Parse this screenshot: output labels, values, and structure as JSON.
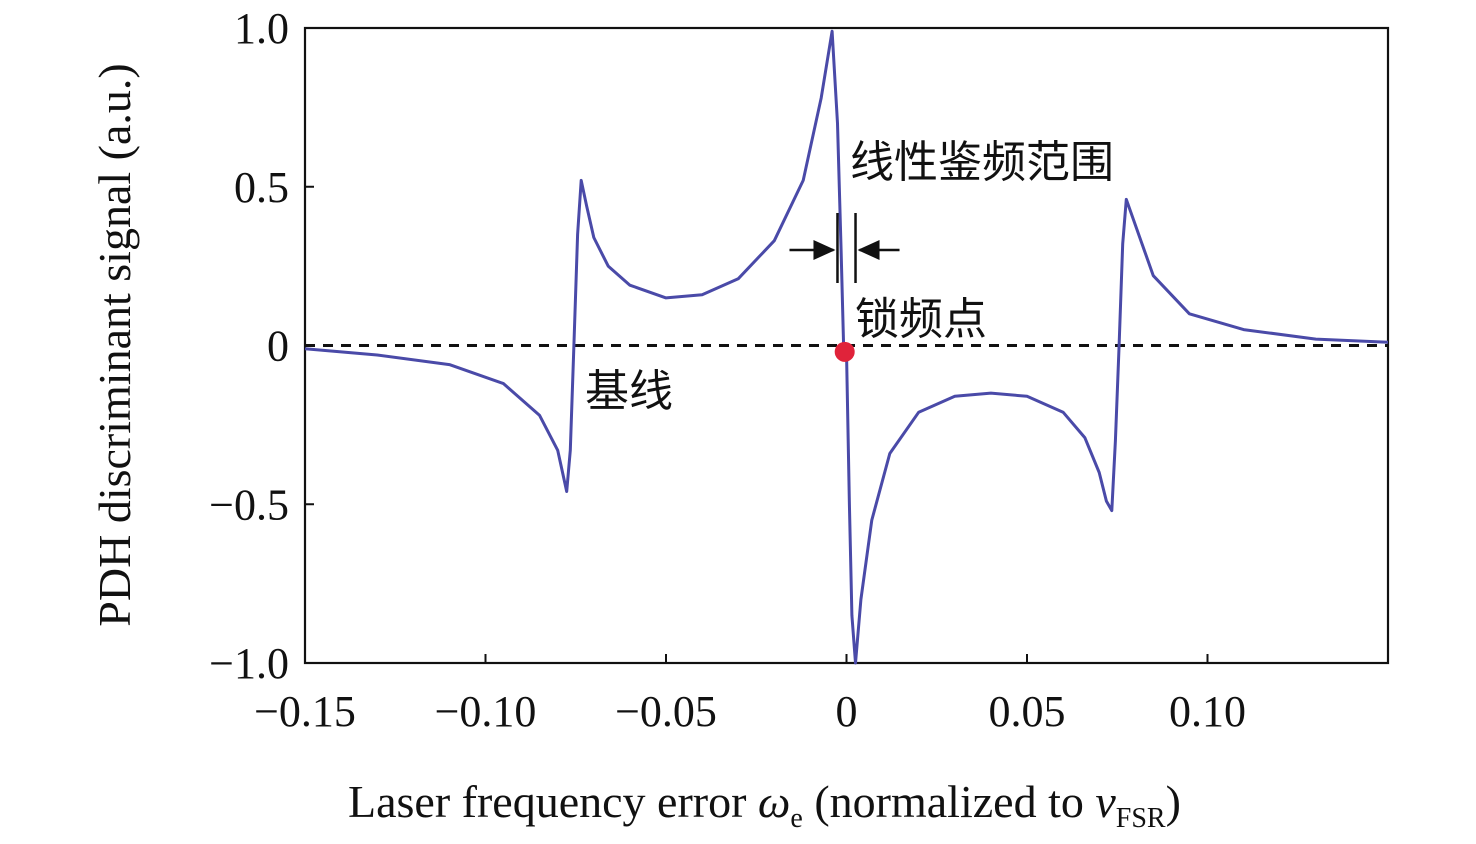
{
  "chart_data": {
    "type": "line",
    "title": "",
    "xlabel": {
      "main": "Laser frequency error ",
      "symbol": "ω",
      "symbol_sub": "e",
      "paren_open": " (normalized to ",
      "nu": "ν",
      "nu_sub": "FSR",
      "paren_close": ")"
    },
    "ylabel": "PDH discriminant signal (a.u.)",
    "xlim": [
      -0.15,
      0.15
    ],
    "ylim": [
      -1.0,
      1.0
    ],
    "x_ticks": [
      -0.15,
      -0.1,
      -0.05,
      0,
      0.05,
      0.1
    ],
    "x_tick_labels": [
      "−0.15",
      "−0.10",
      "−0.05",
      "0",
      "0.05",
      "0.10"
    ],
    "y_ticks": [
      -1.0,
      -0.5,
      0,
      0.5,
      1.0
    ],
    "y_tick_labels": [
      "−1.0",
      "−0.5",
      "0",
      "0.5",
      "1.0"
    ],
    "grid": false,
    "colors": {
      "signal": "#4a4aa8",
      "baseline": "#111111",
      "lock_point": "#e0233a"
    },
    "series": [
      {
        "x": [
          -0.15,
          -0.13,
          -0.11,
          -0.095,
          -0.085,
          -0.08,
          -0.0775,
          -0.0765,
          -0.0755,
          -0.0745,
          -0.0735,
          -0.072,
          -0.07,
          -0.066,
          -0.06,
          -0.05,
          -0.04,
          -0.03,
          -0.02,
          -0.012,
          -0.007,
          -0.004,
          -0.0025,
          -0.0015,
          -0.0008,
          0,
          0.0008,
          0.0015,
          0.0025,
          0.004,
          0.007,
          0.012,
          0.02,
          0.03,
          0.04,
          0.05,
          0.06,
          0.066,
          0.07,
          0.072,
          0.0735,
          0.0745,
          0.0755,
          0.0765,
          0.0775,
          0.08,
          0.085,
          0.095,
          0.11,
          0.13,
          0.15
        ],
        "y": [
          -0.01,
          -0.03,
          -0.06,
          -0.12,
          -0.22,
          -0.33,
          -0.46,
          -0.33,
          0.0,
          0.35,
          0.52,
          0.44,
          0.34,
          0.25,
          0.19,
          0.15,
          0.16,
          0.21,
          0.33,
          0.52,
          0.78,
          0.99,
          0.7,
          0.3,
          0.0,
          -0.02,
          -0.5,
          -0.85,
          -1.0,
          -0.8,
          -0.55,
          -0.34,
          -0.21,
          -0.16,
          -0.15,
          -0.16,
          -0.21,
          -0.29,
          -0.4,
          -0.49,
          -0.52,
          -0.3,
          0.0,
          0.32,
          0.46,
          0.38,
          0.22,
          0.1,
          0.05,
          0.02,
          0.01
        ]
      }
    ],
    "baseline_y": 0,
    "lock_point": {
      "x": -0.0005,
      "y": -0.02
    },
    "annotations": {
      "linear_range": "线性鉴频范围",
      "lock_point": "锁频点",
      "baseline": "基线"
    },
    "linear_range_x": [
      -0.0025,
      0.0025
    ]
  }
}
